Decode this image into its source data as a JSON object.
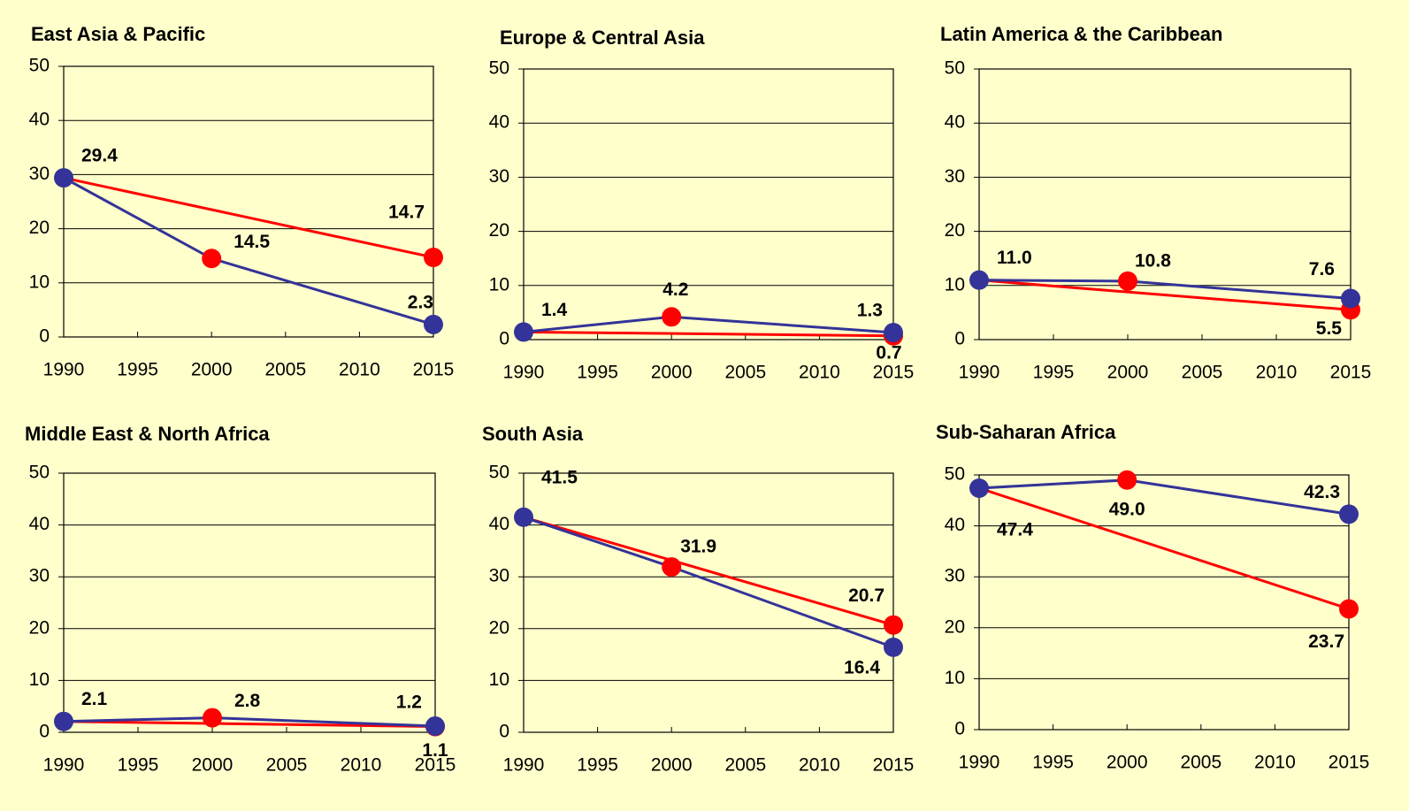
{
  "chart_data": [
    {
      "type": "line",
      "title": "East Asia & Pacific",
      "xlim": [
        1990,
        2015
      ],
      "xticks": [
        1990,
        1995,
        2000,
        2005,
        2010,
        2015
      ],
      "ylim": [
        0,
        50
      ],
      "yticks": [
        0,
        10,
        20,
        30,
        40,
        50
      ],
      "grid": true,
      "series": [
        {
          "color": "#333399",
          "x": [
            1990,
            2000,
            2015
          ],
          "values": [
            29.4,
            14.5,
            2.3
          ],
          "value_labels": [
            "29.4",
            "14.5",
            "2.3"
          ],
          "marker_colors": [
            "#333399",
            "#ff0000",
            "#333399"
          ]
        },
        {
          "color": "#ff0000",
          "x": [
            1990,
            2015
          ],
          "values": [
            29.4,
            14.7
          ],
          "value_labels": [
            null,
            "14.7"
          ],
          "marker_colors": [
            null,
            "#ff0000"
          ]
        }
      ]
    },
    {
      "type": "line",
      "title": "Europe & Central Asia",
      "xlim": [
        1990,
        2015
      ],
      "xticks": [
        1990,
        1995,
        2000,
        2005,
        2010,
        2015
      ],
      "ylim": [
        0,
        50
      ],
      "yticks": [
        0,
        10,
        20,
        30,
        40,
        50
      ],
      "grid": true,
      "series": [
        {
          "color": "#333399",
          "x": [
            1990,
            2000,
            2015
          ],
          "values": [
            1.4,
            4.2,
            1.3
          ],
          "value_labels": [
            "1.4",
            "4.2",
            "1.3"
          ],
          "marker_colors": [
            "#333399",
            "#ff0000",
            "#333399"
          ]
        },
        {
          "color": "#ff0000",
          "x": [
            1990,
            2015
          ],
          "values": [
            1.4,
            0.7
          ],
          "value_labels": [
            null,
            "0.7"
          ],
          "marker_colors": [
            null,
            "#ff0000"
          ]
        }
      ]
    },
    {
      "type": "line",
      "title": "Latin America & the Caribbean",
      "xlim": [
        1990,
        2015
      ],
      "xticks": [
        1990,
        1995,
        2000,
        2005,
        2010,
        2015
      ],
      "ylim": [
        0,
        50
      ],
      "yticks": [
        0,
        10,
        20,
        30,
        40,
        50
      ],
      "grid": true,
      "series": [
        {
          "color": "#333399",
          "x": [
            1990,
            2000,
            2015
          ],
          "values": [
            11.0,
            10.8,
            7.6
          ],
          "value_labels": [
            "11.0",
            "10.8",
            "7.6"
          ],
          "marker_colors": [
            "#333399",
            "#ff0000",
            "#333399"
          ]
        },
        {
          "color": "#ff0000",
          "x": [
            1990,
            2015
          ],
          "values": [
            11.0,
            5.5
          ],
          "value_labels": [
            null,
            "5.5"
          ],
          "marker_colors": [
            null,
            "#ff0000"
          ]
        }
      ]
    },
    {
      "type": "line",
      "title": "Middle East & North Africa",
      "xlim": [
        1990,
        2015
      ],
      "xticks": [
        1990,
        1995,
        2000,
        2005,
        2010,
        2015
      ],
      "ylim": [
        0,
        50
      ],
      "yticks": [
        0,
        10,
        20,
        30,
        40,
        50
      ],
      "grid": true,
      "series": [
        {
          "color": "#333399",
          "x": [
            1990,
            2000,
            2015
          ],
          "values": [
            2.1,
            2.8,
            1.2
          ],
          "value_labels": [
            "2.1",
            "2.8",
            "1.2"
          ],
          "marker_colors": [
            "#333399",
            "#ff0000",
            "#333399"
          ]
        },
        {
          "color": "#ff0000",
          "x": [
            1990,
            2015
          ],
          "values": [
            2.1,
            1.1
          ],
          "value_labels": [
            null,
            "1.1"
          ],
          "marker_colors": [
            null,
            "#ff0000"
          ]
        }
      ]
    },
    {
      "type": "line",
      "title": "South Asia",
      "xlim": [
        1990,
        2015
      ],
      "xticks": [
        1990,
        1995,
        2000,
        2005,
        2010,
        2015
      ],
      "ylim": [
        0,
        50
      ],
      "yticks": [
        0,
        10,
        20,
        30,
        40,
        50
      ],
      "grid": true,
      "series": [
        {
          "color": "#333399",
          "x": [
            1990,
            2000,
            2015
          ],
          "values": [
            41.5,
            31.9,
            16.4
          ],
          "value_labels": [
            "41.5",
            "31.9",
            "16.4"
          ],
          "marker_colors": [
            "#333399",
            "#ff0000",
            "#333399"
          ]
        },
        {
          "color": "#ff0000",
          "x": [
            1990,
            2015
          ],
          "values": [
            41.5,
            20.7
          ],
          "value_labels": [
            null,
            "20.7"
          ],
          "marker_colors": [
            null,
            "#ff0000"
          ]
        }
      ]
    },
    {
      "type": "line",
      "title": "Sub-Saharan Africa",
      "xlim": [
        1990,
        2015
      ],
      "xticks": [
        1990,
        1995,
        2000,
        2005,
        2010,
        2015
      ],
      "ylim": [
        0,
        50
      ],
      "yticks": [
        0,
        10,
        20,
        30,
        40,
        50
      ],
      "grid": true,
      "series": [
        {
          "color": "#333399",
          "x": [
            1990,
            2000,
            2015
          ],
          "values": [
            47.4,
            49.0,
            42.3
          ],
          "value_labels": [
            "47.4",
            "49.0",
            "42.3"
          ],
          "marker_colors": [
            "#333399",
            "#ff0000",
            "#333399"
          ]
        },
        {
          "color": "#ff0000",
          "x": [
            1990,
            2015
          ],
          "values": [
            47.4,
            23.7
          ],
          "value_labels": [
            null,
            "23.7"
          ],
          "marker_colors": [
            null,
            "#ff0000"
          ]
        }
      ]
    }
  ]
}
